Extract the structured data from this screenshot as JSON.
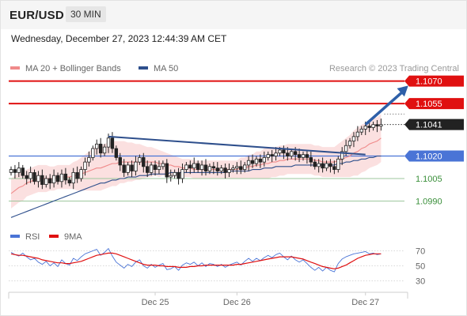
{
  "header": {
    "symbol": "EUR/USD",
    "timeframe": "30 MIN"
  },
  "timestamp": "Wednesday, December 27, 2023 12:44:39 AM CET",
  "credit": "Research © 2023 Trading Central",
  "colors": {
    "red": "#e01010",
    "blue": "#4a74d6",
    "green": "#3a8f3a",
    "ma20": "#f08a8a",
    "band": "#fadada",
    "ma50": "#2e4f8c",
    "trend": "#2e4f8c",
    "candle": "#222222"
  },
  "chart_data": [
    {
      "type": "candlestick",
      "legend": [
        {
          "label": "MA 20 + Bollinger Bands",
          "color": "#f08a8a"
        },
        {
          "label": "MA 50",
          "color": "#2e4f8c"
        }
      ],
      "ylim": [
        1.0976,
        1.1083
      ],
      "x_ticks": [
        {
          "label": "Dec 25",
          "index": 37
        },
        {
          "label": "Dec 26",
          "index": 58
        },
        {
          "label": "Dec 27",
          "index": 91
        }
      ],
      "levels": [
        {
          "value": 1.107,
          "label": "1.1070",
          "kind": "resistance",
          "color": "#e01010"
        },
        {
          "value": 1.1055,
          "label": "1.1055",
          "kind": "resistance",
          "color": "#e01010"
        },
        {
          "value": 1.1041,
          "label": "1.1041",
          "kind": "last",
          "color": "#222222"
        },
        {
          "value": 1.102,
          "label": "1.1020",
          "kind": "pivot",
          "color": "#4a74d6"
        },
        {
          "value": 1.1005,
          "label": "1.1005",
          "kind": "support",
          "color": "#3a8f3a"
        },
        {
          "value": 1.099,
          "label": "1.0990",
          "kind": "support",
          "color": "#3a8f3a"
        }
      ],
      "close": [
        1.1011,
        1.1009,
        1.1012,
        1.1007,
        1.1005,
        1.1009,
        1.1003,
        1.1007,
        1.1001,
        1.1005,
        1.1002,
        1.1007,
        1.1003,
        1.1008,
        1.1004,
        1.1002,
        1.1009,
        1.1005,
        1.1011,
        1.1016,
        1.1019,
        1.1025,
        1.1028,
        1.1022,
        1.1026,
        1.1032,
        1.1025,
        1.1019,
        1.1014,
        1.1009,
        1.1014,
        1.101,
        1.1016,
        1.1019,
        1.1013,
        1.1009,
        1.1014,
        1.1011,
        1.1013,
        1.1015,
        1.1006,
        1.1007,
        1.1009,
        1.1005,
        1.1011,
        1.1014,
        1.1012,
        1.1015,
        1.1011,
        1.1014,
        1.101,
        1.1013,
        1.1012,
        1.101,
        1.1012,
        1.1009,
        1.1011,
        1.1012,
        1.1013,
        1.1011,
        1.1014,
        1.1017,
        1.1015,
        1.1018,
        1.1016,
        1.1019,
        1.1021,
        1.102,
        1.1022,
        1.1024,
        1.1022,
        1.102,
        1.1023,
        1.1021,
        1.1019,
        1.1021,
        1.1019,
        1.1016,
        1.1013,
        1.1015,
        1.1012,
        1.1015,
        1.1013,
        1.1011,
        1.1018,
        1.1023,
        1.1027,
        1.103,
        1.1033,
        1.1036,
        1.1038,
        1.104,
        1.1039,
        1.1041,
        1.104,
        1.1041
      ],
      "ma20": [
        1.0995,
        1.0997,
        1.0999,
        1.1,
        1.1002,
        1.1003,
        1.1004,
        1.1005,
        1.1005,
        1.1005,
        1.1005,
        1.1005,
        1.1006,
        1.1006,
        1.1006,
        1.1006,
        1.1007,
        1.1007,
        1.1008,
        1.1009,
        1.101,
        1.1011,
        1.1012,
        1.1012,
        1.1013,
        1.1014,
        1.1015,
        1.1015,
        1.1016,
        1.1016,
        1.1016,
        1.1016,
        1.1016,
        1.1016,
        1.1016,
        1.1016,
        1.1016,
        1.1016,
        1.1015,
        1.1015,
        1.1014,
        1.1014,
        1.1013,
        1.1013,
        1.1012,
        1.1012,
        1.1012,
        1.1011,
        1.1011,
        1.1011,
        1.1011,
        1.1011,
        1.1011,
        1.1011,
        1.1011,
        1.1011,
        1.1011,
        1.1011,
        1.1011,
        1.1012,
        1.1012,
        1.1013,
        1.1013,
        1.1014,
        1.1014,
        1.1015,
        1.1015,
        1.1016,
        1.1016,
        1.1017,
        1.1017,
        1.1018,
        1.1018,
        1.1018,
        1.1018,
        1.1018,
        1.1018,
        1.1018,
        1.1017,
        1.1017,
        1.1016,
        1.1016,
        1.1016,
        1.1016,
        1.1017,
        1.1018,
        1.1019,
        1.102,
        1.1022,
        1.1023,
        1.1025,
        1.1026,
        1.1028,
        1.1029,
        1.103,
        1.1032
      ],
      "ma50": [
        1.0979,
        1.098,
        1.0981,
        1.0982,
        1.0983,
        1.0984,
        1.0985,
        1.0986,
        1.0987,
        1.0988,
        1.0989,
        1.099,
        1.0991,
        1.0992,
        1.0993,
        1.0994,
        1.0995,
        1.0996,
        1.0997,
        1.0998,
        1.0999,
        1.1,
        1.1001,
        1.1002,
        1.1002,
        1.1003,
        1.1004,
        1.1004,
        1.1005,
        1.1005,
        1.1006,
        1.1006,
        1.1006,
        1.1007,
        1.1007,
        1.1007,
        1.1008,
        1.1008,
        1.1008,
        1.1008,
        1.1008,
        1.1009,
        1.1009,
        1.1009,
        1.1009,
        1.1009,
        1.1009,
        1.1009,
        1.1009,
        1.1009,
        1.1009,
        1.1009,
        1.1009,
        1.1009,
        1.1009,
        1.1009,
        1.101,
        1.101,
        1.101,
        1.101,
        1.101,
        1.101,
        1.1011,
        1.1011,
        1.1011,
        1.1012,
        1.1012,
        1.1012,
        1.1013,
        1.1013,
        1.1013,
        1.1013,
        1.1013,
        1.1014,
        1.1014,
        1.1014,
        1.1014,
        1.1014,
        1.1014,
        1.1014,
        1.1014,
        1.1014,
        1.1014,
        1.1014,
        1.1015,
        1.1015,
        1.1016,
        1.1016,
        1.1017,
        1.1017,
        1.1018,
        1.1018,
        1.1019,
        1.1019,
        1.102,
        1.102
      ],
      "band_width": [
        0.001,
        0.001,
        0.001,
        0.001,
        0.0009,
        0.0009,
        0.0009,
        0.0009,
        0.0009,
        0.0009,
        0.0008,
        0.0008,
        0.0008,
        0.0008,
        0.0008,
        0.0008,
        0.0009,
        0.001,
        0.0011,
        0.0012,
        0.0013,
        0.0014,
        0.0015,
        0.0015,
        0.0015,
        0.0015,
        0.0015,
        0.0015,
        0.0014,
        0.0014,
        0.0013,
        0.0013,
        0.0012,
        0.0012,
        0.0011,
        0.001,
        0.001,
        0.0009,
        0.0009,
        0.0008,
        0.0008,
        0.0007,
        0.0007,
        0.0006,
        0.0006,
        0.0006,
        0.0006,
        0.0006,
        0.0006,
        0.0006,
        0.0006,
        0.0006,
        0.0006,
        0.0006,
        0.0006,
        0.0006,
        0.0006,
        0.0006,
        0.0006,
        0.0007,
        0.0007,
        0.0008,
        0.0008,
        0.0009,
        0.0009,
        0.001,
        0.001,
        0.001,
        0.001,
        0.001,
        0.001,
        0.001,
        0.001,
        0.001,
        0.001,
        0.001,
        0.001,
        0.001,
        0.001,
        0.001,
        0.001,
        0.001,
        0.001,
        0.001,
        0.0011,
        0.0012,
        0.0013,
        0.0014,
        0.0015,
        0.0016,
        0.0016,
        0.0016,
        0.0016,
        0.0016,
        0.0016,
        0.0016
      ],
      "trendline": {
        "from": {
          "index": 25,
          "value": 1.1033
        },
        "to": {
          "index": 91,
          "value": 1.1021
        }
      },
      "projection": {
        "from": {
          "index": 91,
          "value": 1.1041
        },
        "to": {
          "index": 102,
          "value": 1.1067
        }
      }
    },
    {
      "type": "line",
      "legend": [
        {
          "label": "RSI",
          "color": "#4a74d6"
        },
        {
          "label": "9MA",
          "color": "#e01010"
        }
      ],
      "ylim": [
        20,
        80
      ],
      "y_ticks": [
        70,
        50,
        30
      ],
      "rsi": [
        68,
        65,
        63,
        67,
        62,
        58,
        60,
        55,
        52,
        56,
        50,
        54,
        49,
        58,
        53,
        51,
        60,
        57,
        62,
        66,
        68,
        70,
        72,
        64,
        68,
        73,
        63,
        55,
        51,
        47,
        52,
        49,
        55,
        58,
        50,
        47,
        52,
        48,
        51,
        53,
        45,
        46,
        49,
        44,
        51,
        54,
        52,
        55,
        50,
        54,
        49,
        53,
        52,
        49,
        52,
        48,
        51,
        53,
        55,
        51,
        56,
        60,
        56,
        60,
        57,
        61,
        64,
        61,
        65,
        67,
        62,
        58,
        63,
        58,
        55,
        58,
        53,
        48,
        44,
        48,
        43,
        48,
        44,
        42,
        53,
        59,
        62,
        64,
        66,
        67,
        68,
        69,
        66,
        67,
        65,
        66
      ],
      "ma9": [
        66,
        65,
        64,
        64,
        63,
        62,
        61,
        60,
        58,
        57,
        56,
        55,
        54,
        54,
        53,
        53,
        54,
        55,
        56,
        58,
        60,
        62,
        64,
        65,
        66,
        67,
        67,
        66,
        64,
        62,
        60,
        58,
        56,
        54,
        52,
        51,
        51,
        51,
        50,
        50,
        49,
        49,
        49,
        48,
        48,
        48,
        49,
        49,
        50,
        50,
        51,
        51,
        51,
        51,
        51,
        51,
        51,
        51,
        52,
        52,
        53,
        54,
        55,
        56,
        57,
        58,
        59,
        60,
        61,
        62,
        62,
        62,
        62,
        61,
        60,
        59,
        57,
        55,
        53,
        51,
        49,
        48,
        47,
        46,
        47,
        49,
        51,
        54,
        57,
        60,
        62,
        64,
        65,
        66,
        66,
        66
      ]
    }
  ]
}
